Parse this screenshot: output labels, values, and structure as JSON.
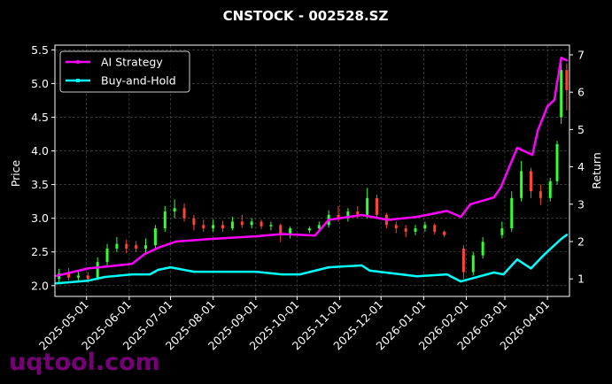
{
  "chart_data": {
    "type": "line",
    "title": "CNSTOCK - 002528.SZ",
    "ylabel": "Price",
    "y2label": "Return",
    "xlim": [
      "2025-04-08",
      "2026-04-17"
    ],
    "ylim": [
      1.84,
      5.57
    ],
    "y2lim": [
      0.53,
      7.26
    ],
    "grid": true,
    "legend_position": "top-left",
    "x_ticks": [
      "2025-05-01",
      "2025-06-01",
      "2025-07-01",
      "2025-08-01",
      "2025-09-01",
      "2025-10-01",
      "2025-11-01",
      "2025-12-01",
      "2026-01-01",
      "2026-02-01",
      "2026-03-01",
      "2026-04-01"
    ],
    "y_ticks": [
      "2.0",
      "2.5",
      "3.0",
      "3.5",
      "4.0",
      "4.5",
      "5.0",
      "5.5"
    ],
    "y2_ticks": [
      "1",
      "2",
      "3",
      "4",
      "5",
      "6",
      "7"
    ],
    "candles_columns": [
      "date",
      "open",
      "high",
      "low",
      "close"
    ],
    "candles": [
      [
        "2025-04-11",
        2.1,
        2.25,
        2.05,
        2.18
      ],
      [
        "2025-04-18",
        2.18,
        2.26,
        2.08,
        2.12
      ],
      [
        "2025-04-25",
        2.12,
        2.22,
        2.06,
        2.15
      ],
      [
        "2025-05-02",
        2.15,
        2.2,
        2.04,
        2.1
      ],
      [
        "2025-05-09",
        2.1,
        2.42,
        2.08,
        2.35
      ],
      [
        "2025-05-16",
        2.35,
        2.62,
        2.3,
        2.55
      ],
      [
        "2025-05-23",
        2.55,
        2.72,
        2.5,
        2.62
      ],
      [
        "2025-05-30",
        2.62,
        2.68,
        2.48,
        2.55
      ],
      [
        "2025-06-06",
        2.6,
        2.66,
        2.5,
        2.55
      ],
      [
        "2025-06-13",
        2.55,
        2.7,
        2.48,
        2.6
      ],
      [
        "2025-06-20",
        2.6,
        2.9,
        2.56,
        2.85
      ],
      [
        "2025-06-27",
        2.85,
        3.18,
        2.8,
        3.1
      ],
      [
        "2025-07-04",
        3.1,
        3.28,
        3.0,
        3.15
      ],
      [
        "2025-07-11",
        3.15,
        3.22,
        2.95,
        3.0
      ],
      [
        "2025-07-18",
        3.0,
        3.05,
        2.82,
        2.9
      ],
      [
        "2025-07-25",
        2.9,
        2.98,
        2.8,
        2.85
      ],
      [
        "2025-08-01",
        2.85,
        2.98,
        2.8,
        2.9
      ],
      [
        "2025-08-08",
        2.9,
        2.96,
        2.8,
        2.85
      ],
      [
        "2025-08-15",
        2.85,
        3.02,
        2.82,
        2.95
      ],
      [
        "2025-08-22",
        2.95,
        3.05,
        2.86,
        2.9
      ],
      [
        "2025-08-29",
        2.9,
        3.0,
        2.85,
        2.95
      ],
      [
        "2025-09-05",
        2.95,
        2.98,
        2.84,
        2.88
      ],
      [
        "2025-09-12",
        2.88,
        2.95,
        2.82,
        2.9
      ],
      [
        "2025-09-19",
        2.9,
        2.92,
        2.65,
        2.75
      ],
      [
        "2025-09-26",
        2.75,
        2.88,
        2.7,
        2.85
      ],
      [
        "2025-10-10",
        2.82,
        2.88,
        2.78,
        2.85
      ],
      [
        "2025-10-17",
        2.85,
        2.95,
        2.8,
        2.9
      ],
      [
        "2025-10-24",
        2.9,
        3.12,
        2.86,
        3.05
      ],
      [
        "2025-10-31",
        3.05,
        3.18,
        2.95,
        3.0
      ],
      [
        "2025-11-07",
        3.0,
        3.15,
        2.95,
        3.1
      ],
      [
        "2025-11-14",
        3.1,
        3.18,
        3.0,
        3.05
      ],
      [
        "2025-11-21",
        3.05,
        3.45,
        3.0,
        3.3
      ],
      [
        "2025-11-28",
        3.3,
        3.35,
        3.0,
        3.05
      ],
      [
        "2025-12-05",
        3.05,
        3.08,
        2.85,
        2.9
      ],
      [
        "2025-12-12",
        2.9,
        2.95,
        2.78,
        2.85
      ],
      [
        "2025-12-19",
        2.85,
        2.9,
        2.72,
        2.8
      ],
      [
        "2025-12-26",
        2.8,
        2.9,
        2.75,
        2.85
      ],
      [
        "2026-01-02",
        2.85,
        2.95,
        2.8,
        2.9
      ],
      [
        "2026-01-09",
        2.9,
        2.92,
        2.76,
        2.8
      ],
      [
        "2026-01-16",
        2.8,
        2.82,
        2.72,
        2.75
      ],
      [
        "2026-01-30",
        2.55,
        2.6,
        2.1,
        2.2
      ],
      [
        "2026-02-06",
        2.2,
        2.5,
        2.15,
        2.45
      ],
      [
        "2026-02-13",
        2.45,
        2.72,
        2.4,
        2.65
      ],
      [
        "2026-02-27",
        2.75,
        2.95,
        2.7,
        2.85
      ],
      [
        "2026-03-06",
        2.85,
        3.4,
        2.8,
        3.3
      ],
      [
        "2026-03-13",
        3.3,
        3.85,
        3.25,
        3.7
      ],
      [
        "2026-03-20",
        3.7,
        3.75,
        3.3,
        3.4
      ],
      [
        "2026-03-27",
        3.4,
        3.5,
        3.2,
        3.3
      ],
      [
        "2026-04-03",
        3.3,
        3.6,
        3.25,
        3.55
      ],
      [
        "2026-04-08",
        3.55,
        4.15,
        3.5,
        4.1
      ],
      [
        "2026-04-11",
        4.5,
        5.35,
        4.4,
        5.2
      ],
      [
        "2026-04-15",
        5.2,
        5.3,
        4.6,
        4.9
      ]
    ],
    "series": [
      {
        "name": "AI Strategy",
        "axis": "right",
        "color": "#ff00ff",
        "x": [
          "2025-04-09",
          "2025-05-02",
          "2025-06-03",
          "2025-06-12",
          "2025-06-22",
          "2025-07-05",
          "2025-07-31",
          "2025-09-01",
          "2025-09-20",
          "2025-10-03",
          "2025-10-14",
          "2025-10-24",
          "2025-11-17",
          "2025-12-06",
          "2025-12-27",
          "2026-01-18",
          "2026-01-28",
          "2026-02-04",
          "2026-02-21",
          "2026-02-26",
          "2026-03-10",
          "2026-03-21",
          "2026-03-25",
          "2026-04-01",
          "2026-04-06",
          "2026-04-11",
          "2026-04-15"
        ],
        "values": [
          1.08,
          1.28,
          1.4,
          1.66,
          1.83,
          2.0,
          2.07,
          2.14,
          2.2,
          2.18,
          2.16,
          2.58,
          2.71,
          2.58,
          2.66,
          2.82,
          2.66,
          3.0,
          3.18,
          3.44,
          4.51,
          4.32,
          4.98,
          5.62,
          5.79,
          6.92,
          6.85
        ]
      },
      {
        "name": "Buy-and-Hold",
        "axis": "right",
        "color": "#00ffff",
        "x": [
          "2025-04-09",
          "2025-05-02",
          "2025-05-14",
          "2025-06-03",
          "2025-06-16",
          "2025-06-22",
          "2025-07-01",
          "2025-07-18",
          "2025-09-01",
          "2025-09-20",
          "2025-10-03",
          "2025-10-24",
          "2025-11-17",
          "2025-11-23",
          "2025-12-27",
          "2026-01-18",
          "2026-01-28",
          "2026-02-21",
          "2026-02-28",
          "2026-03-10",
          "2026-03-20",
          "2026-03-30",
          "2026-04-11",
          "2026-04-15"
        ],
        "values": [
          0.88,
          0.95,
          1.05,
          1.12,
          1.12,
          1.24,
          1.31,
          1.19,
          1.19,
          1.12,
          1.12,
          1.31,
          1.36,
          1.22,
          1.07,
          1.12,
          0.93,
          1.17,
          1.12,
          1.52,
          1.28,
          1.66,
          2.07,
          2.18
        ]
      }
    ],
    "candle_colors": {
      "up": "#33ff33",
      "down": "#ff4433"
    }
  },
  "watermark": "uqtool.com"
}
